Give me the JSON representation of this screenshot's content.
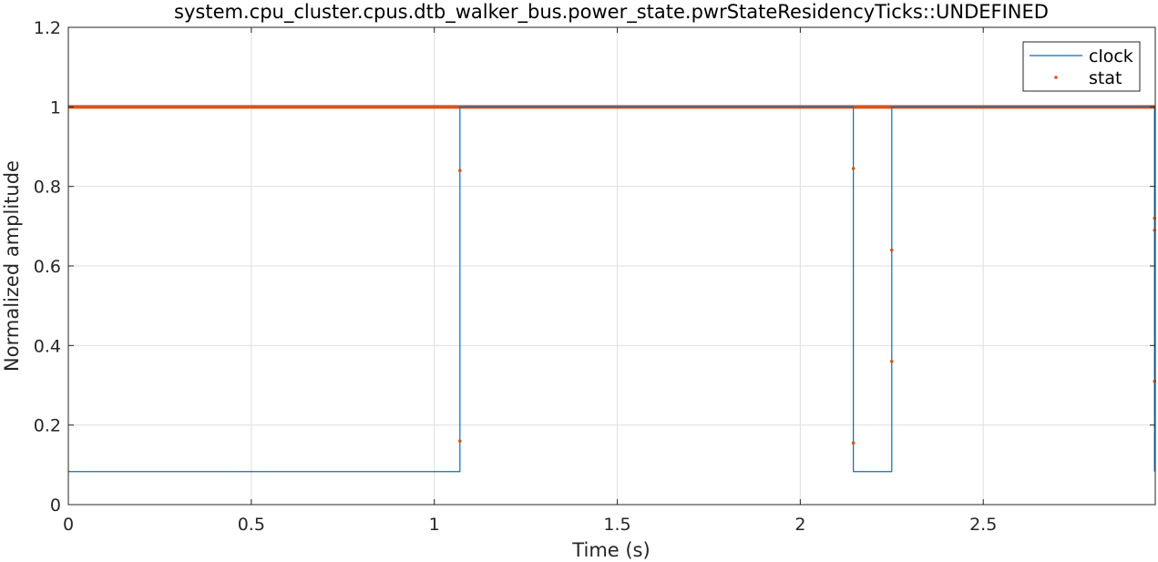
{
  "chart_data": {
    "type": "line",
    "title": "system.cpu_cluster.cpus.dtb_walker_bus.power_state.pwrStateResidencyTicks::UNDEFINED",
    "xlabel": "Time (s)",
    "ylabel": "Normalized amplitude",
    "xlim": [
      0,
      2.97
    ],
    "ylim": [
      0,
      1.2
    ],
    "x_ticks": [
      0,
      0.5,
      1,
      1.5,
      2,
      2.5
    ],
    "x_tick_labels": [
      "0",
      "0.5",
      "1",
      "1.5",
      "2",
      "2.5"
    ],
    "y_ticks": [
      0,
      0.2,
      0.4,
      0.6,
      0.8,
      1,
      1.2
    ],
    "y_tick_labels": [
      "0",
      "0.2",
      "0.4",
      "0.6",
      "0.8",
      "1",
      "1.2"
    ],
    "grid": true,
    "legend_position": "top-right",
    "series": [
      {
        "name": "clock",
        "style": "step-line",
        "color": "#0072BD",
        "x": [
          0,
          1.07,
          1.07,
          2.145,
          2.145,
          2.25,
          2.25,
          2.968,
          2.968
        ],
        "y": [
          0.083,
          0.083,
          1,
          1,
          0.083,
          0.083,
          1,
          1,
          0.083
        ]
      },
      {
        "name": "stat",
        "style": "dots",
        "color": "#D95319",
        "continuous_line": {
          "y": 1,
          "x_from": 0,
          "x_to": 2.97
        },
        "x": [
          1.07,
          1.07,
          2.145,
          2.145,
          2.25,
          2.25,
          2.968,
          2.968,
          2.968
        ],
        "y": [
          0.84,
          0.16,
          0.845,
          0.155,
          0.64,
          0.36,
          0.72,
          0.69,
          0.31
        ]
      }
    ]
  }
}
